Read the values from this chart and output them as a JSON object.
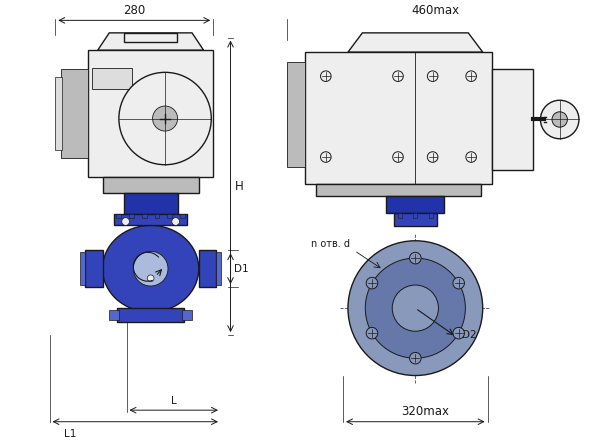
{
  "bg_color": "#ffffff",
  "line_color": "#1a1a1a",
  "blue_dark": "#2233aa",
  "blue_mid": "#3344bb",
  "blue_light": "#5566cc",
  "blue_flange": "#7788cc",
  "blue_pale": "#aabbdd",
  "gray_dark": "#888888",
  "gray_mid": "#bbbbbb",
  "gray_light": "#dddddd",
  "gray_pale": "#eeeeee",
  "dim_280": "280",
  "dim_460max": "460max",
  "dim_H": "H",
  "dim_D1": "D1",
  "dim_L": "L",
  "dim_L1": "L1",
  "dim_D2": "D2",
  "dim_n_otv_d": "n отв. d",
  "dim_320max": "320max",
  "figsize": [
    5.91,
    4.41
  ],
  "dpi": 100
}
